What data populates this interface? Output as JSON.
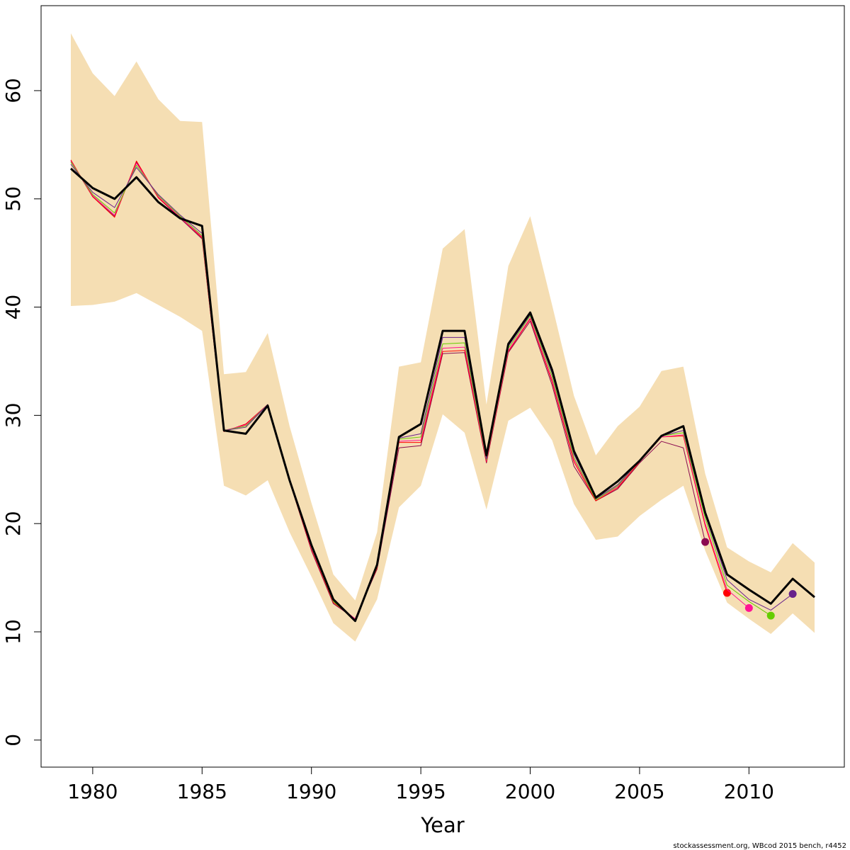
{
  "chart_data": {
    "type": "line",
    "xlabel": "Year",
    "footnote": "stockassessment.org, WBcod 2015 bench, r4452",
    "x": [
      1979,
      1980,
      1981,
      1982,
      1983,
      1984,
      1985,
      1986,
      1987,
      1988,
      1989,
      1990,
      1991,
      1992,
      1993,
      1994,
      1995,
      1996,
      1997,
      1998,
      1999,
      2000,
      2001,
      2002,
      2003,
      2004,
      2005,
      2006,
      2007,
      2008,
      2009,
      2010,
      2011,
      2012,
      2013
    ],
    "xlim": [
      1977.64,
      2014.36
    ],
    "xticks": [
      1980,
      1985,
      1990,
      1995,
      2000,
      2005,
      2010
    ],
    "ylim": [
      -2.5,
      67.85
    ],
    "yticks": [
      0,
      10,
      20,
      30,
      40,
      50,
      60
    ],
    "band": {
      "color": "#f5deb3",
      "upper": [
        65.3,
        61.6,
        59.5,
        62.7,
        59.2,
        57.2,
        57.1,
        33.8,
        34.0,
        37.6,
        29.0,
        21.9,
        15.3,
        12.9,
        19.2,
        34.5,
        34.9,
        45.4,
        47.2,
        31.0,
        43.8,
        48.4,
        40.2,
        31.8,
        26.3,
        29.0,
        30.8,
        34.1,
        34.5,
        24.6,
        17.8,
        16.5,
        15.5,
        18.2,
        16.4
      ],
      "lower": [
        40.1,
        40.2,
        40.5,
        41.3,
        40.2,
        39.1,
        37.8,
        23.5,
        22.6,
        24.0,
        19.2,
        15.1,
        10.8,
        9.1,
        13.0,
        21.5,
        23.5,
        30.1,
        28.4,
        21.3,
        29.5,
        30.7,
        27.7,
        21.8,
        18.5,
        18.8,
        20.7,
        22.2,
        23.5,
        17.5,
        12.7,
        11.2,
        9.8,
        11.7,
        9.9
      ]
    },
    "series": [
      {
        "color": "#000000",
        "values": [
          52.8,
          51.0,
          50.0,
          52.0,
          49.7,
          48.2,
          47.5,
          28.6,
          28.3,
          30.9,
          24.0,
          18.0,
          13.0,
          11.0,
          16.2,
          28.0,
          29.2,
          37.8,
          37.8,
          26.3,
          36.6,
          39.5,
          34.2,
          26.7,
          22.4,
          23.9,
          25.8,
          28.1,
          29.0,
          21.0,
          15.3,
          13.9,
          12.6,
          14.9,
          13.2
        ]
      },
      {
        "color": "#68228b",
        "values": [
          53.2,
          50.6,
          49.2,
          52.9,
          50.4,
          48.5,
          46.8,
          28.6,
          28.9,
          31.0,
          24.1,
          17.9,
          12.9,
          11.1,
          16.1,
          27.9,
          28.3,
          37.2,
          37.2,
          26.0,
          36.4,
          39.3,
          33.9,
          26.4,
          22.3,
          23.6,
          25.8,
          28.1,
          28.6,
          20.8,
          14.8,
          13.0,
          12.0,
          13.5,
          null
        ]
      },
      {
        "color": "#66cd00",
        "values": [
          53.4,
          50.4,
          48.7,
          53.1,
          50.3,
          48.4,
          46.6,
          28.6,
          29.0,
          31.0,
          24.0,
          17.8,
          12.8,
          11.1,
          16.0,
          27.8,
          28.0,
          36.6,
          36.7,
          25.9,
          36.2,
          39.2,
          33.6,
          26.1,
          22.2,
          23.5,
          25.8,
          28.1,
          28.4,
          20.5,
          14.3,
          12.8,
          11.5,
          null,
          null
        ]
      },
      {
        "color": "#ff1493",
        "values": [
          53.5,
          50.3,
          48.5,
          53.3,
          50.2,
          48.3,
          46.5,
          28.6,
          29.1,
          31.0,
          24.0,
          17.7,
          12.8,
          11.2,
          16.0,
          27.6,
          27.7,
          36.2,
          36.3,
          25.8,
          36.0,
          39.0,
          33.3,
          25.9,
          22.2,
          23.4,
          25.8,
          28.0,
          28.2,
          20.0,
          13.9,
          12.2,
          null,
          null,
          null
        ]
      },
      {
        "color": "#ff0000",
        "values": [
          53.6,
          50.2,
          48.3,
          53.5,
          50.1,
          48.3,
          46.4,
          28.5,
          29.2,
          31.0,
          23.9,
          17.6,
          12.7,
          11.2,
          15.9,
          27.5,
          27.5,
          35.9,
          36.0,
          25.7,
          35.9,
          38.9,
          33.1,
          25.7,
          22.1,
          23.3,
          25.7,
          28.0,
          28.1,
          19.8,
          13.6,
          null,
          null,
          null,
          null
        ]
      },
      {
        "color": "#8b0a50",
        "values": [
          53.5,
          50.2,
          48.4,
          53.4,
          50.1,
          48.2,
          46.3,
          28.5,
          29.2,
          31.0,
          23.9,
          17.5,
          12.6,
          11.2,
          15.8,
          27.0,
          27.2,
          35.7,
          35.8,
          25.6,
          35.8,
          38.7,
          32.8,
          25.3,
          22.1,
          23.2,
          25.6,
          27.6,
          27.0,
          18.3,
          null,
          null,
          null,
          null,
          null
        ]
      }
    ]
  }
}
